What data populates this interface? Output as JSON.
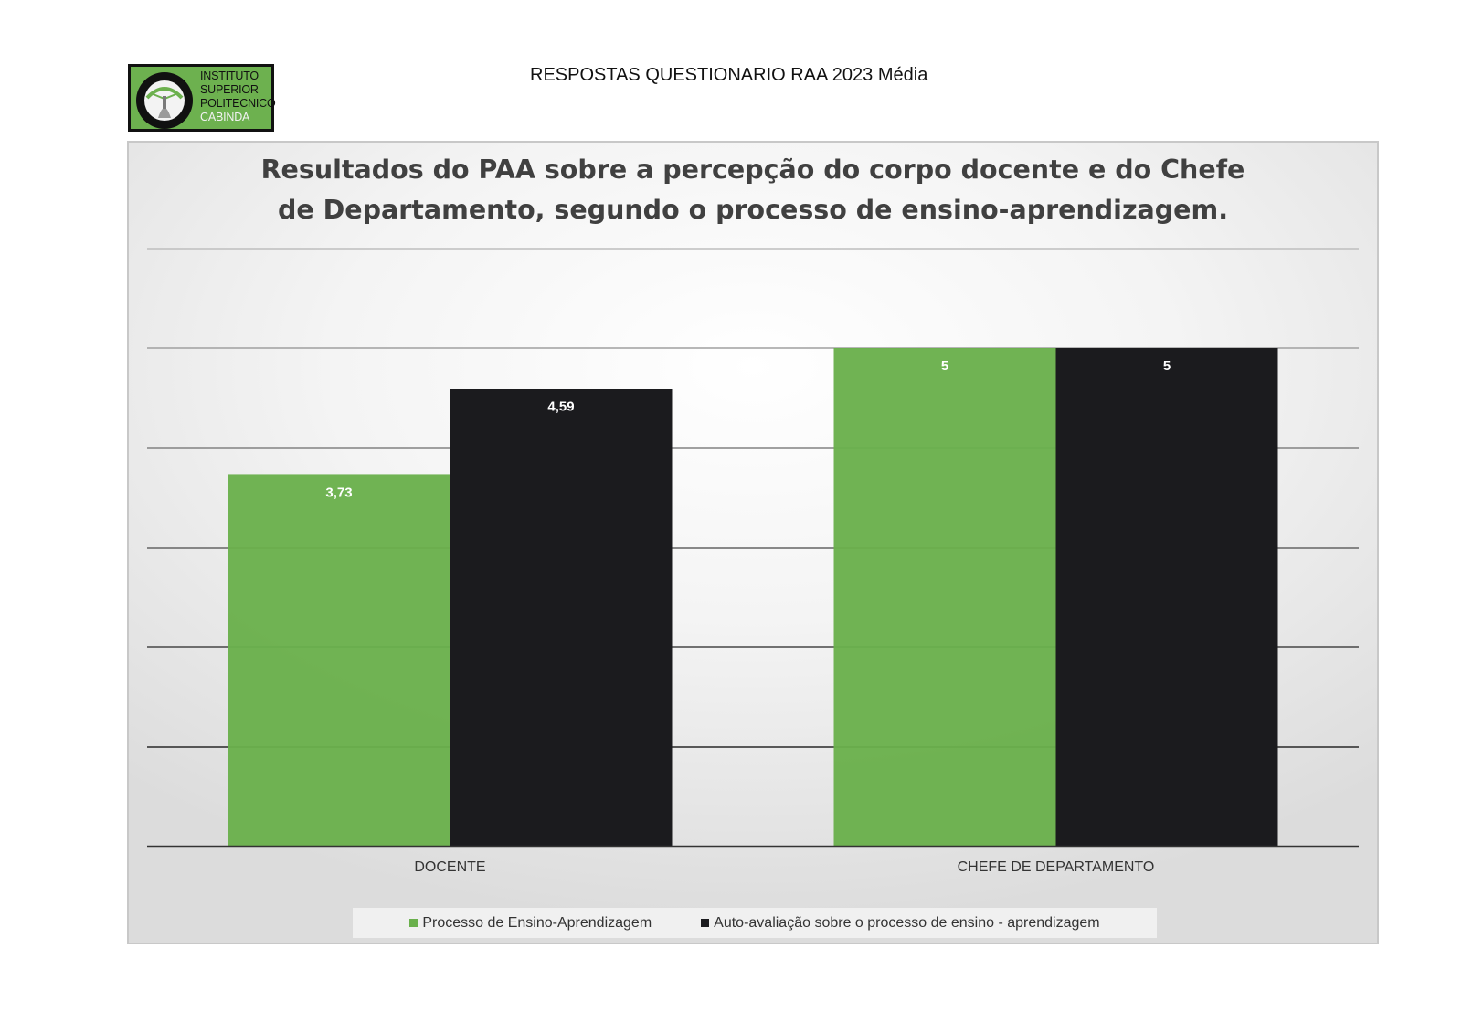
{
  "header": {
    "text": "RESPOSTAS QUESTIONARIO RAA 2023 Média"
  },
  "logo": {
    "lines": [
      "INSTITUTO",
      "SUPERIOR",
      "POLITECNICO",
      "CABINDA"
    ],
    "colors": {
      "background": "#6db14f",
      "seal": "#111111"
    }
  },
  "chart_data": {
    "type": "bar",
    "title_lines": [
      "Resultados do PAA sobre a percepção do corpo docente e do Chefe",
      "de Departamento, segundo o processo de ensino-aprendizagem."
    ],
    "categories": [
      "DOCENTE",
      "CHEFE DE DEPARTAMENTO"
    ],
    "series": [
      {
        "name": "Processo de Ensino-Aprendizagem",
        "values": [
          3.73,
          5
        ],
        "labels": [
          "3,73",
          "5"
        ],
        "color": "#6ab04c"
      },
      {
        "name": "Auto-avaliação sobre o processo de ensino - aprendizagem",
        "values": [
          4.59,
          5
        ],
        "labels": [
          "4,59",
          "5"
        ],
        "color": "#1b1b1e"
      }
    ],
    "ylim": [
      0,
      6
    ],
    "grid": true,
    "y_tick_labels_shown": false,
    "legend": "bottom"
  }
}
